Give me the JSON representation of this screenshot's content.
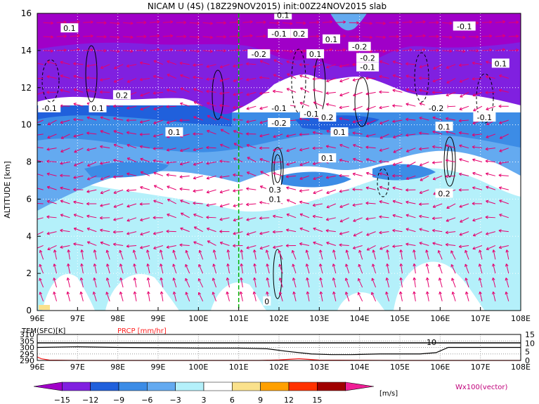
{
  "title": "NICAM U (4S) (18Z29NOV2015) init:00Z24NOV2015 slab",
  "chart_data": [
    {
      "type": "heatmap",
      "title": "NICAM U (4S) (18Z29NOV2015) init:00Z24NOV2015 slab",
      "ylabel": "ALTITUDE [km]",
      "xlabel": "",
      "x_ticks": [
        "96E",
        "97E",
        "98E",
        "99E",
        "100E",
        "101E",
        "102E",
        "103E",
        "104E",
        "105E",
        "106E",
        "107E",
        "108E"
      ],
      "y_ticks": [
        "0",
        "2",
        "4",
        "6",
        "8",
        "10",
        "12",
        "14",
        "16"
      ],
      "xlim": [
        96,
        108
      ],
      "ylim": [
        0,
        16
      ],
      "grid": true,
      "vertical_marker_lon": 101,
      "contour_labels": [
        {
          "text": "0.1",
          "lon": 96.8,
          "alt": 15.2
        },
        {
          "text": "0.1",
          "lon": 102.1,
          "alt": 15.9
        },
        {
          "text": "-0.1",
          "lon": 102.0,
          "alt": 14.9
        },
        {
          "text": "0.2",
          "lon": 102.5,
          "alt": 14.9
        },
        {
          "text": "0.1",
          "lon": 103.3,
          "alt": 14.6
        },
        {
          "text": "-0.1",
          "lon": 106.6,
          "alt": 15.3
        },
        {
          "text": "-0.2",
          "lon": 101.5,
          "alt": 13.8
        },
        {
          "text": "0.1",
          "lon": 102.9,
          "alt": 13.8
        },
        {
          "text": "-0.2",
          "lon": 104.2,
          "alt": 13.6
        },
        {
          "text": "-0.1",
          "lon": 104.2,
          "alt": 13.1
        },
        {
          "text": "-0.2",
          "lon": 104.0,
          "alt": 14.2
        },
        {
          "text": "0.1",
          "lon": 107.5,
          "alt": 13.3
        },
        {
          "text": "0.2",
          "lon": 98.1,
          "alt": 11.6
        },
        {
          "text": "-0.1",
          "lon": 96.3,
          "alt": 10.9
        },
        {
          "text": "0.1",
          "lon": 97.5,
          "alt": 10.9
        },
        {
          "text": "-0.1",
          "lon": 102.0,
          "alt": 10.9
        },
        {
          "text": "-0.2",
          "lon": 102.0,
          "alt": 10.1
        },
        {
          "text": "-0.1",
          "lon": 102.8,
          "alt": 10.6
        },
        {
          "text": "0.2",
          "lon": 103.2,
          "alt": 10.4
        },
        {
          "text": "0.1",
          "lon": 103.5,
          "alt": 9.6
        },
        {
          "text": "-0.2",
          "lon": 105.9,
          "alt": 10.9
        },
        {
          "text": "0.1",
          "lon": 106.1,
          "alt": 9.9
        },
        {
          "text": "-0.1",
          "lon": 107.1,
          "alt": 10.4
        },
        {
          "text": "0.1",
          "lon": 99.4,
          "alt": 9.6
        },
        {
          "text": "0.1",
          "lon": 103.2,
          "alt": 8.2
        },
        {
          "text": "0.3",
          "lon": 101.9,
          "alt": 6.5
        },
        {
          "text": "0.1",
          "lon": 101.9,
          "alt": 6.0
        },
        {
          "text": "0.2",
          "lon": 106.1,
          "alt": 6.3
        },
        {
          "text": "0",
          "lon": 101.7,
          "alt": 0.5
        }
      ]
    },
    {
      "type": "line",
      "title": "",
      "series": [
        {
          "name": "TEM(SFC)[K]",
          "color": "#000000",
          "x": [
            96,
            97,
            98,
            99,
            100,
            101,
            101.7,
            102.2,
            102.8,
            103.3,
            103.8,
            104.5,
            105,
            105.5,
            105.9,
            106.2,
            108
          ],
          "y": [
            300,
            300.5,
            300,
            299.8,
            299.5,
            299.5,
            299,
            297,
            295,
            294.5,
            294.5,
            295,
            295,
            295,
            296,
            300,
            300
          ]
        },
        {
          "name": "PRCP [mm/hr]",
          "color": "#ff2020",
          "x": [
            96,
            96.1,
            96.3,
            97,
            101.5,
            102,
            102.5,
            103,
            105,
            108
          ],
          "y": [
            2,
            1,
            0.2,
            0,
            0,
            0.3,
            1,
            0.2,
            0,
            0
          ]
        }
      ],
      "y_ticks_left": [
        "310",
        "305",
        "300",
        "295",
        "290"
      ],
      "y_ticks_right": [
        "15",
        "10",
        "5",
        "0"
      ],
      "ylim_left": [
        290,
        310
      ],
      "ylim_right": [
        0,
        15
      ],
      "annotation": "10"
    }
  ],
  "lower_panel": {
    "tem_label": "TEM(SFC)[K]",
    "prcp_label": "PRCP [mm/hr]",
    "annotation": "10"
  },
  "colorbar": {
    "levels": [
      "−15",
      "−12",
      "−9",
      "−6",
      "−3",
      "3",
      "6",
      "9",
      "12",
      "15"
    ],
    "unit": "[m/s]",
    "colors": [
      "#a000c8",
      "#8020e0",
      "#2060dc",
      "#3c8ce6",
      "#64aaf0",
      "#b4f0fa",
      "#ffffff",
      "#fae18c",
      "#ffa000",
      "#ff3200",
      "#a00000",
      "#f01e96"
    ]
  },
  "vector_label": "Wx100(vector)",
  "colors": {
    "vector": "#e6006e",
    "marker": "#00b400",
    "prcp": "#ff2020"
  }
}
